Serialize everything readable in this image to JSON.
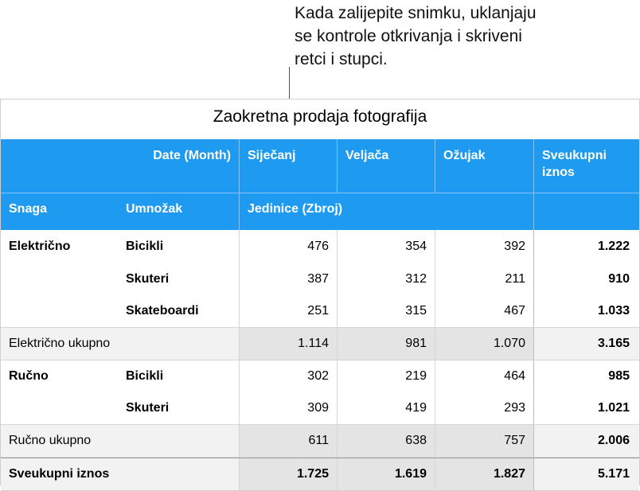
{
  "callout": {
    "line1": "Kada zalijepite snimku, uklanjaju",
    "line2": "se kontrole otkrivanja i skriveni",
    "line3": "retci i stupci."
  },
  "table": {
    "title": "Zaokretna prodaja fotografija",
    "header1": {
      "col2": "Date (Month)",
      "col3": "Siječanj",
      "col4": "Veljača",
      "col5": "Ožujak",
      "col6_l1": "Sveukupni",
      "col6_l2": "iznos"
    },
    "header2": {
      "col1": "Snaga",
      "col2": "Umnožak",
      "col3": "Jedinice (Zbroj)"
    },
    "groups": [
      {
        "name": "Električno",
        "rows": [
          {
            "product": "Bicikli",
            "jan": "476",
            "feb": "354",
            "mar": "392",
            "total": "1.222"
          },
          {
            "product": "Skuteri",
            "jan": "387",
            "feb": "312",
            "mar": "211",
            "total": "910"
          },
          {
            "product": "Skateboardi",
            "jan": "251",
            "feb": "315",
            "mar": "467",
            "total": "1.033"
          }
        ],
        "subtotal": {
          "label": "Električno ukupno",
          "jan": "1.114",
          "feb": "981",
          "mar": "1.070",
          "total": "3.165"
        }
      },
      {
        "name": "Ručno",
        "rows": [
          {
            "product": "Bicikli",
            "jan": "302",
            "feb": "219",
            "mar": "464",
            "total": "985"
          },
          {
            "product": "Skuteri",
            "jan": "309",
            "feb": "419",
            "mar": "293",
            "total": "1.021"
          }
        ],
        "subtotal": {
          "label": "Ručno ukupno",
          "jan": "611",
          "feb": "638",
          "mar": "757",
          "total": "2.006"
        }
      }
    ],
    "grand": {
      "label": "Sveukupni iznos",
      "jan": "1.725",
      "feb": "1.619",
      "mar": "1.827",
      "total": "5.171"
    }
  }
}
